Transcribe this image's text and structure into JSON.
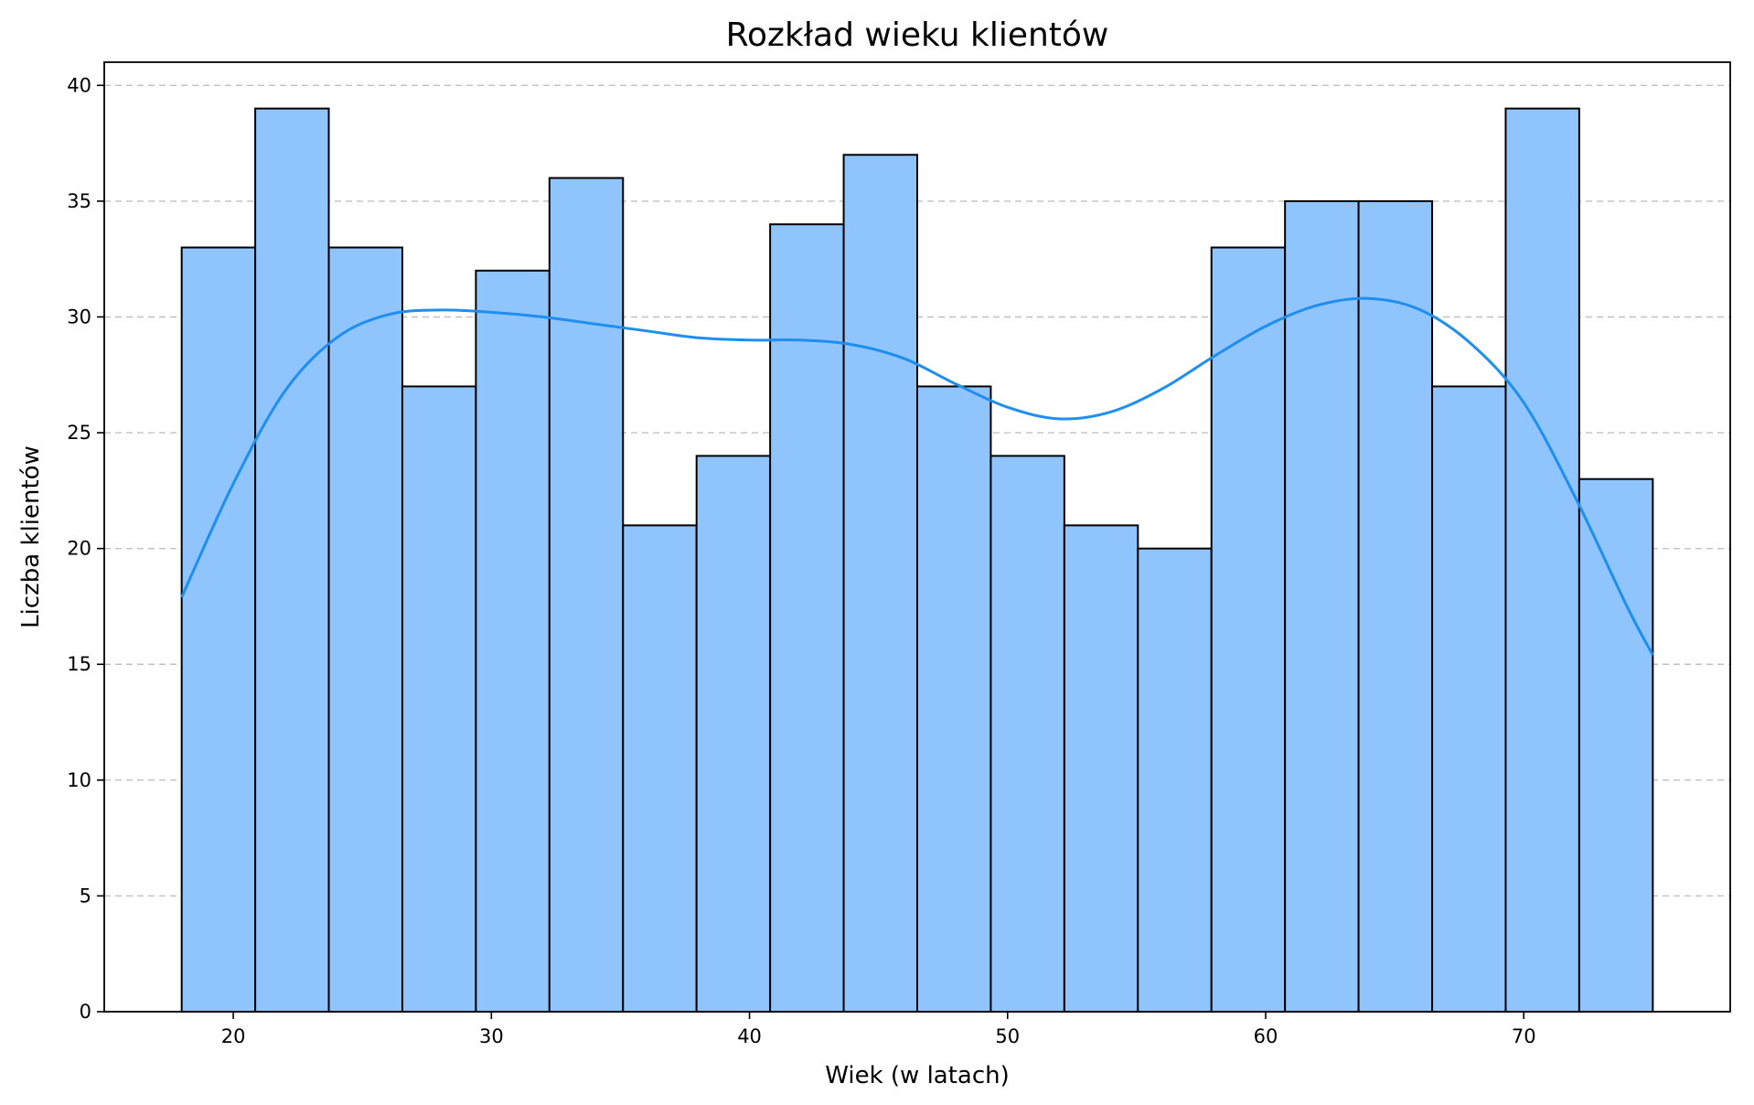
{
  "chart_data": {
    "type": "bar",
    "subtype": "histogram-with-kde",
    "title": "Rozkład wieku klientów",
    "xlabel": "Wiek (w latach)",
    "ylabel": "Liczba klientów",
    "xlim": [
      15,
      78
    ],
    "ylim": [
      0,
      41
    ],
    "x_ticks": [
      20,
      30,
      40,
      50,
      60,
      70
    ],
    "y_ticks": [
      0,
      5,
      10,
      15,
      20,
      25,
      30,
      35,
      40
    ],
    "grid": "y-dashed",
    "bin_edges": [
      18,
      20.85,
      23.7,
      26.55,
      29.4,
      32.25,
      35.1,
      37.95,
      40.8,
      43.65,
      46.5,
      49.35,
      52.2,
      55.05,
      57.9,
      60.75,
      63.6,
      66.45,
      69.3,
      72.15,
      75
    ],
    "counts": [
      33,
      39,
      33,
      27,
      32,
      36,
      21,
      24,
      34,
      37,
      27,
      24,
      21,
      20,
      33,
      35,
      35,
      27,
      39,
      23
    ],
    "kde": {
      "x": [
        18,
        20,
        22,
        24,
        26,
        28,
        30,
        32,
        34,
        36,
        38,
        40,
        42,
        44,
        46,
        48,
        50,
        52,
        54,
        56,
        58,
        60,
        62,
        64,
        66,
        68,
        70,
        72,
        74,
        75
      ],
      "y": [
        17.9,
        22.8,
        26.8,
        29.1,
        30.1,
        30.3,
        30.2,
        30.0,
        29.7,
        29.4,
        29.1,
        29.0,
        29.0,
        28.8,
        28.2,
        27.1,
        26.1,
        25.6,
        25.9,
        26.9,
        28.3,
        29.6,
        30.5,
        30.8,
        30.3,
        28.8,
        26.3,
        22.2,
        17.5,
        15.4
      ]
    },
    "colors": {
      "bar_fill": "#90c4fc",
      "bar_edge": "#000000",
      "kde_line": "#1e8ef0",
      "grid": "#c0c0c0"
    }
  }
}
